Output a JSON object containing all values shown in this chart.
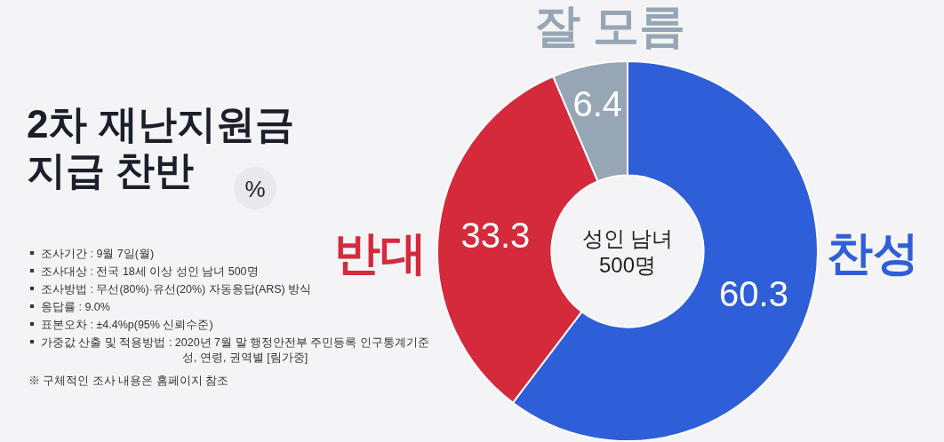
{
  "chart_data": {
    "type": "donut",
    "title": "2차 재난지원금\n지급 찬반",
    "subtitle": "%",
    "categories": [
      "찬성",
      "반대",
      "잘 모름"
    ],
    "values": [
      60.3,
      33.3,
      6.4
    ],
    "colors": [
      "#2f5fd8",
      "#d42a3c",
      "#97a6b4"
    ],
    "data_labels": true,
    "annotations": [
      "성인 남녀\n500명",
      "조사기간 : 9월 7일(월)",
      "조사대상 : 전국 18세 이상 성인 남녀 500명",
      "조사방법 : 무선(80%)·유선(20%) 자동응답(ARS) 방식",
      "응답률 : 9.0%",
      "표본오차 : ±4.4%p(95% 신뢰수준)",
      "가중값 산출 및 적용방법 : 2020년 7월 말 행정안전부 주민등록 인구통계기준\n성, 연령, 권역별 [림가중]",
      "※ 구체적인 조사 내용은 홈페이지 참조"
    ]
  }
}
